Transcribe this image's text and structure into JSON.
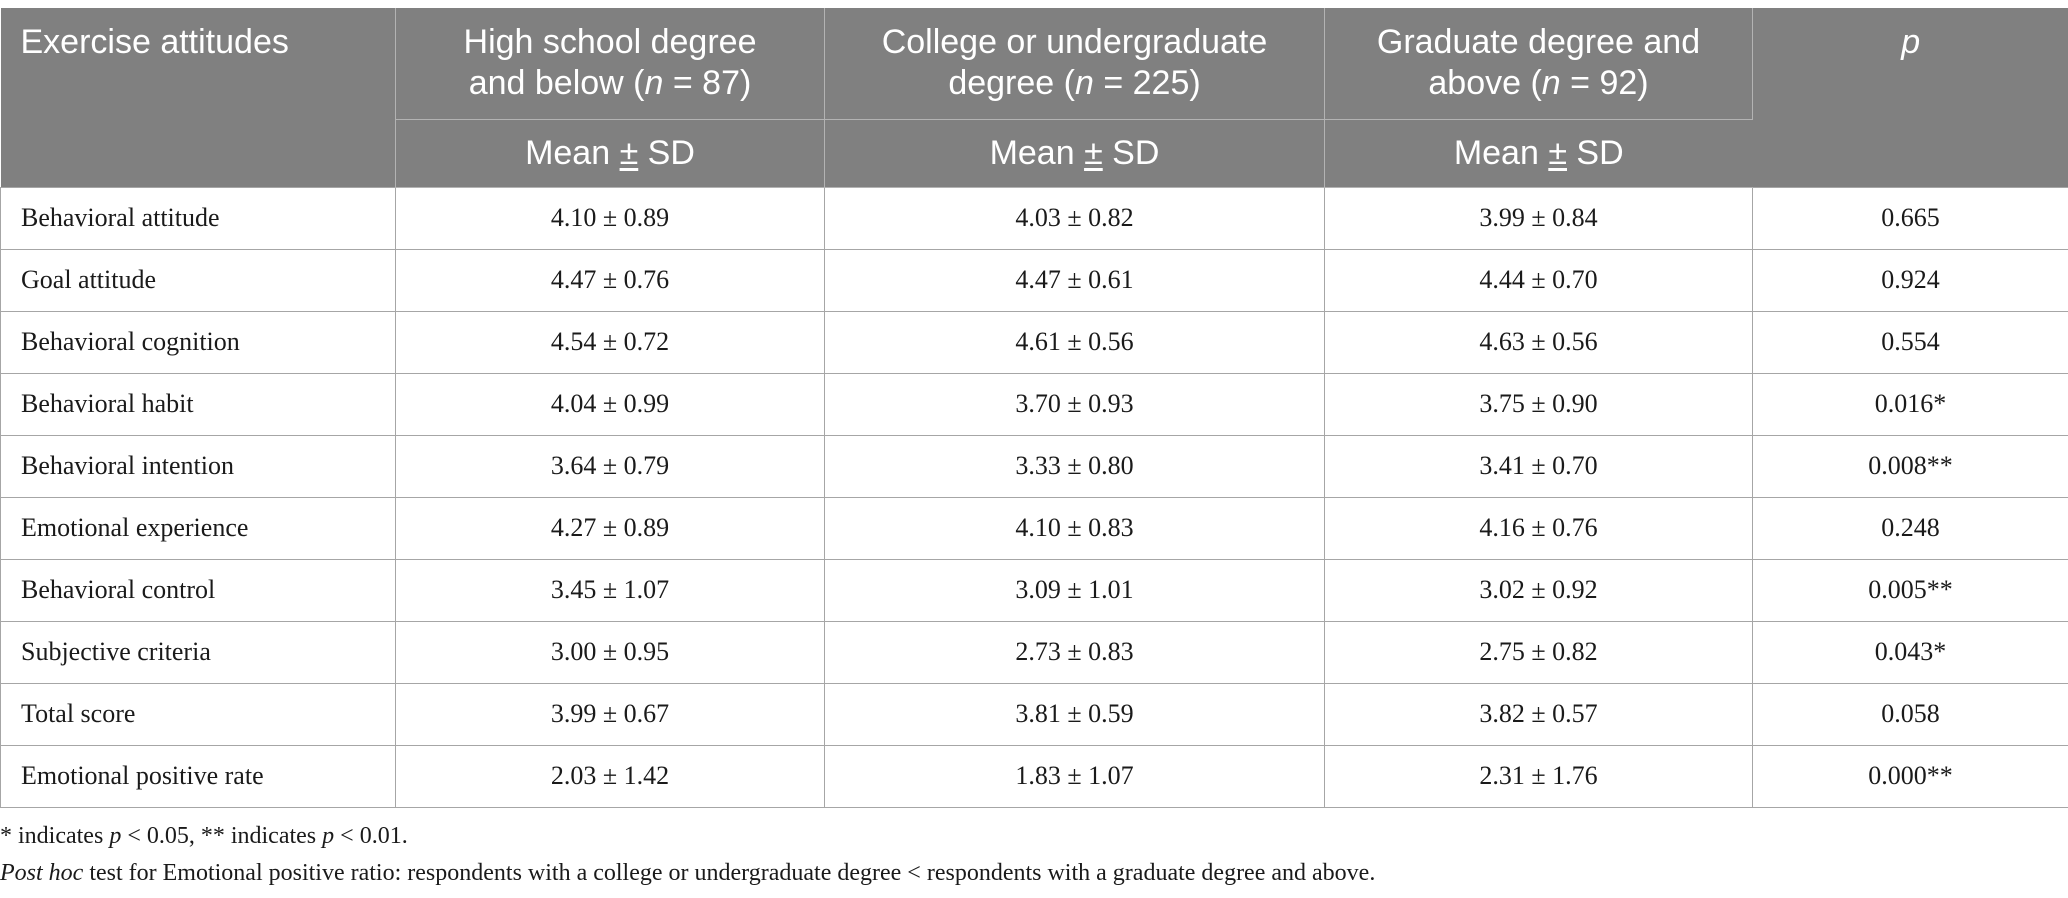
{
  "header": {
    "col0": "Exercise attitudes",
    "groups": [
      {
        "line1": "High school degree",
        "line2_pre": "and below (",
        "n_sym": "n",
        "line2_post": " = 87)"
      },
      {
        "line1": "College or undergraduate",
        "line2_pre": "degree (",
        "n_sym": "n",
        "line2_post": " = 225)"
      },
      {
        "line1": "Graduate degree and",
        "line2_pre": "above (",
        "n_sym": "n",
        "line2_post": " = 92)"
      }
    ],
    "p_label": "p",
    "sub_pre": "Mean ",
    "sub_pm": "±",
    "sub_post": " SD"
  },
  "rows": [
    {
      "label": "Behavioral attitude",
      "v1": "4.10 ± 0.89",
      "v2": "4.03 ± 0.82",
      "v3": "3.99 ± 0.84",
      "p": "0.665"
    },
    {
      "label": "Goal attitude",
      "v1": "4.47 ± 0.76",
      "v2": "4.47 ± 0.61",
      "v3": "4.44 ± 0.70",
      "p": "0.924"
    },
    {
      "label": "Behavioral cognition",
      "v1": "4.54 ± 0.72",
      "v2": "4.61 ± 0.56",
      "v3": "4.63 ± 0.56",
      "p": "0.554"
    },
    {
      "label": "Behavioral habit",
      "v1": "4.04 ± 0.99",
      "v2": "3.70 ± 0.93",
      "v3": "3.75 ± 0.90",
      "p": "0.016*"
    },
    {
      "label": "Behavioral intention",
      "v1": "3.64 ± 0.79",
      "v2": "3.33 ± 0.80",
      "v3": "3.41 ± 0.70",
      "p": "0.008**"
    },
    {
      "label": "Emotional experience",
      "v1": "4.27 ± 0.89",
      "v2": "4.10 ± 0.83",
      "v3": "4.16 ± 0.76",
      "p": "0.248"
    },
    {
      "label": "Behavioral control",
      "v1": "3.45 ± 1.07",
      "v2": "3.09 ± 1.01",
      "v3": "3.02 ± 0.92",
      "p": "0.005**"
    },
    {
      "label": "Subjective criteria",
      "v1": "3.00 ± 0.95",
      "v2": "2.73 ± 0.83",
      "v3": "2.75 ± 0.82",
      "p": "0.043*"
    },
    {
      "label": "Total score",
      "v1": "3.99 ± 0.67",
      "v2": "3.81 ± 0.59",
      "v3": "3.82 ± 0.57",
      "p": "0.058"
    },
    {
      "label": "Emotional positive rate",
      "v1": "2.03 ± 1.42",
      "v2": "1.83 ± 1.07",
      "v3": "2.31 ± 1.76",
      "p": "0.000**"
    }
  ],
  "notes": {
    "line1": {
      "a": "* indicates ",
      "p1": "p",
      "b": " < 0.05, ** indicates ",
      "p2": "p",
      "c": " < 0.01."
    },
    "line2": {
      "italic": "Post hoc",
      "rest": " test for Emotional positive ratio: respondents with a college or undergraduate degree < respondents with a graduate degree and above."
    }
  }
}
